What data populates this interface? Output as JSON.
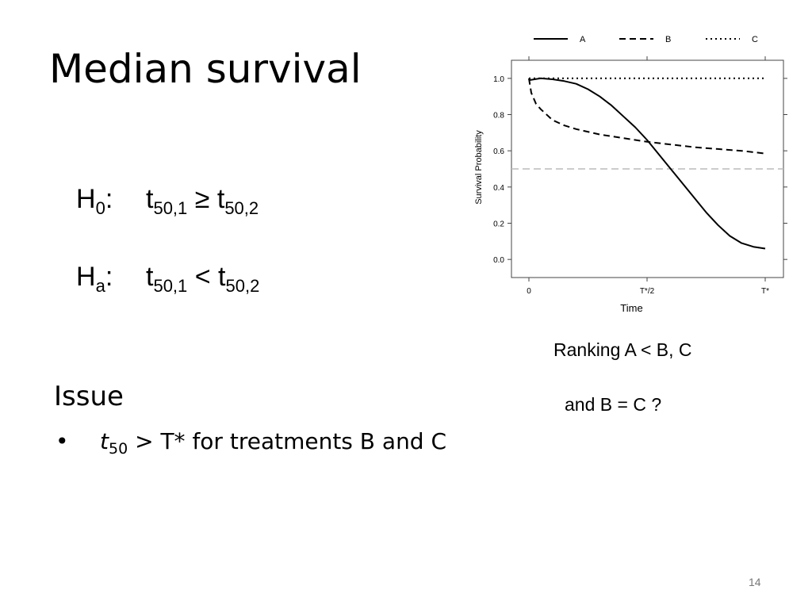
{
  "slide": {
    "title": "Median survival",
    "hypotheses": {
      "h0": {
        "letter": "H",
        "sub": "0",
        "colon": ":",
        "t1": "t",
        "t1_sub": "50,1",
        "op": "≥",
        "t2": "t",
        "t2_sub": "50,2"
      },
      "ha": {
        "letter": "H",
        "sub": "a",
        "colon": ":",
        "t1": "t",
        "t1_sub": "50,1",
        "op": "<",
        "t2": "t",
        "t2_sub": "50,2"
      }
    },
    "issue": {
      "heading": "Issue",
      "bullet": "•",
      "var": "t",
      "var_sub": "50",
      "text": "> T* for treatments B and C"
    },
    "notes": [
      "Ranking A < B, C",
      "and B = C ?"
    ],
    "page_number": "14"
  },
  "chart_data": {
    "type": "line",
    "title": "",
    "xlabel": "Time",
    "ylabel": "Survival Probability",
    "xlim": [
      0,
      1
    ],
    "ylim": [
      -0.1,
      1.1
    ],
    "x_ticks": [
      0,
      0.5,
      1
    ],
    "x_tick_labels": [
      "0",
      "T*/2",
      "T*"
    ],
    "y_ticks": [
      0,
      0.2,
      0.4,
      0.6,
      0.8,
      1.0
    ],
    "y_tick_labels": [
      "0.0",
      "0.2",
      "0.4",
      "0.6",
      "0.8",
      "1.0"
    ],
    "reference_line": {
      "y": 0.5,
      "style": "dashed",
      "color": "#bbbbbb"
    },
    "legend_position": "top",
    "series": [
      {
        "name": "A",
        "style": "solid",
        "x": [
          0,
          0.05,
          0.1,
          0.15,
          0.2,
          0.25,
          0.3,
          0.35,
          0.4,
          0.45,
          0.5,
          0.55,
          0.6,
          0.65,
          0.7,
          0.75,
          0.8,
          0.85,
          0.9,
          0.95,
          1.0
        ],
        "y": [
          0.99,
          1.0,
          0.995,
          0.985,
          0.97,
          0.94,
          0.9,
          0.85,
          0.79,
          0.73,
          0.66,
          0.58,
          0.5,
          0.42,
          0.34,
          0.26,
          0.19,
          0.13,
          0.09,
          0.07,
          0.06
        ]
      },
      {
        "name": "B",
        "style": "dashed",
        "x": [
          0,
          0.01,
          0.03,
          0.05,
          0.1,
          0.15,
          0.2,
          0.3,
          0.4,
          0.5,
          0.6,
          0.7,
          0.8,
          0.9,
          1.0
        ],
        "y": [
          1.0,
          0.92,
          0.86,
          0.83,
          0.77,
          0.74,
          0.72,
          0.69,
          0.67,
          0.65,
          0.635,
          0.62,
          0.61,
          0.6,
          0.585
        ]
      },
      {
        "name": "C",
        "style": "dotted",
        "x": [
          0,
          1.0
        ],
        "y": [
          1.0,
          1.0
        ]
      }
    ]
  }
}
